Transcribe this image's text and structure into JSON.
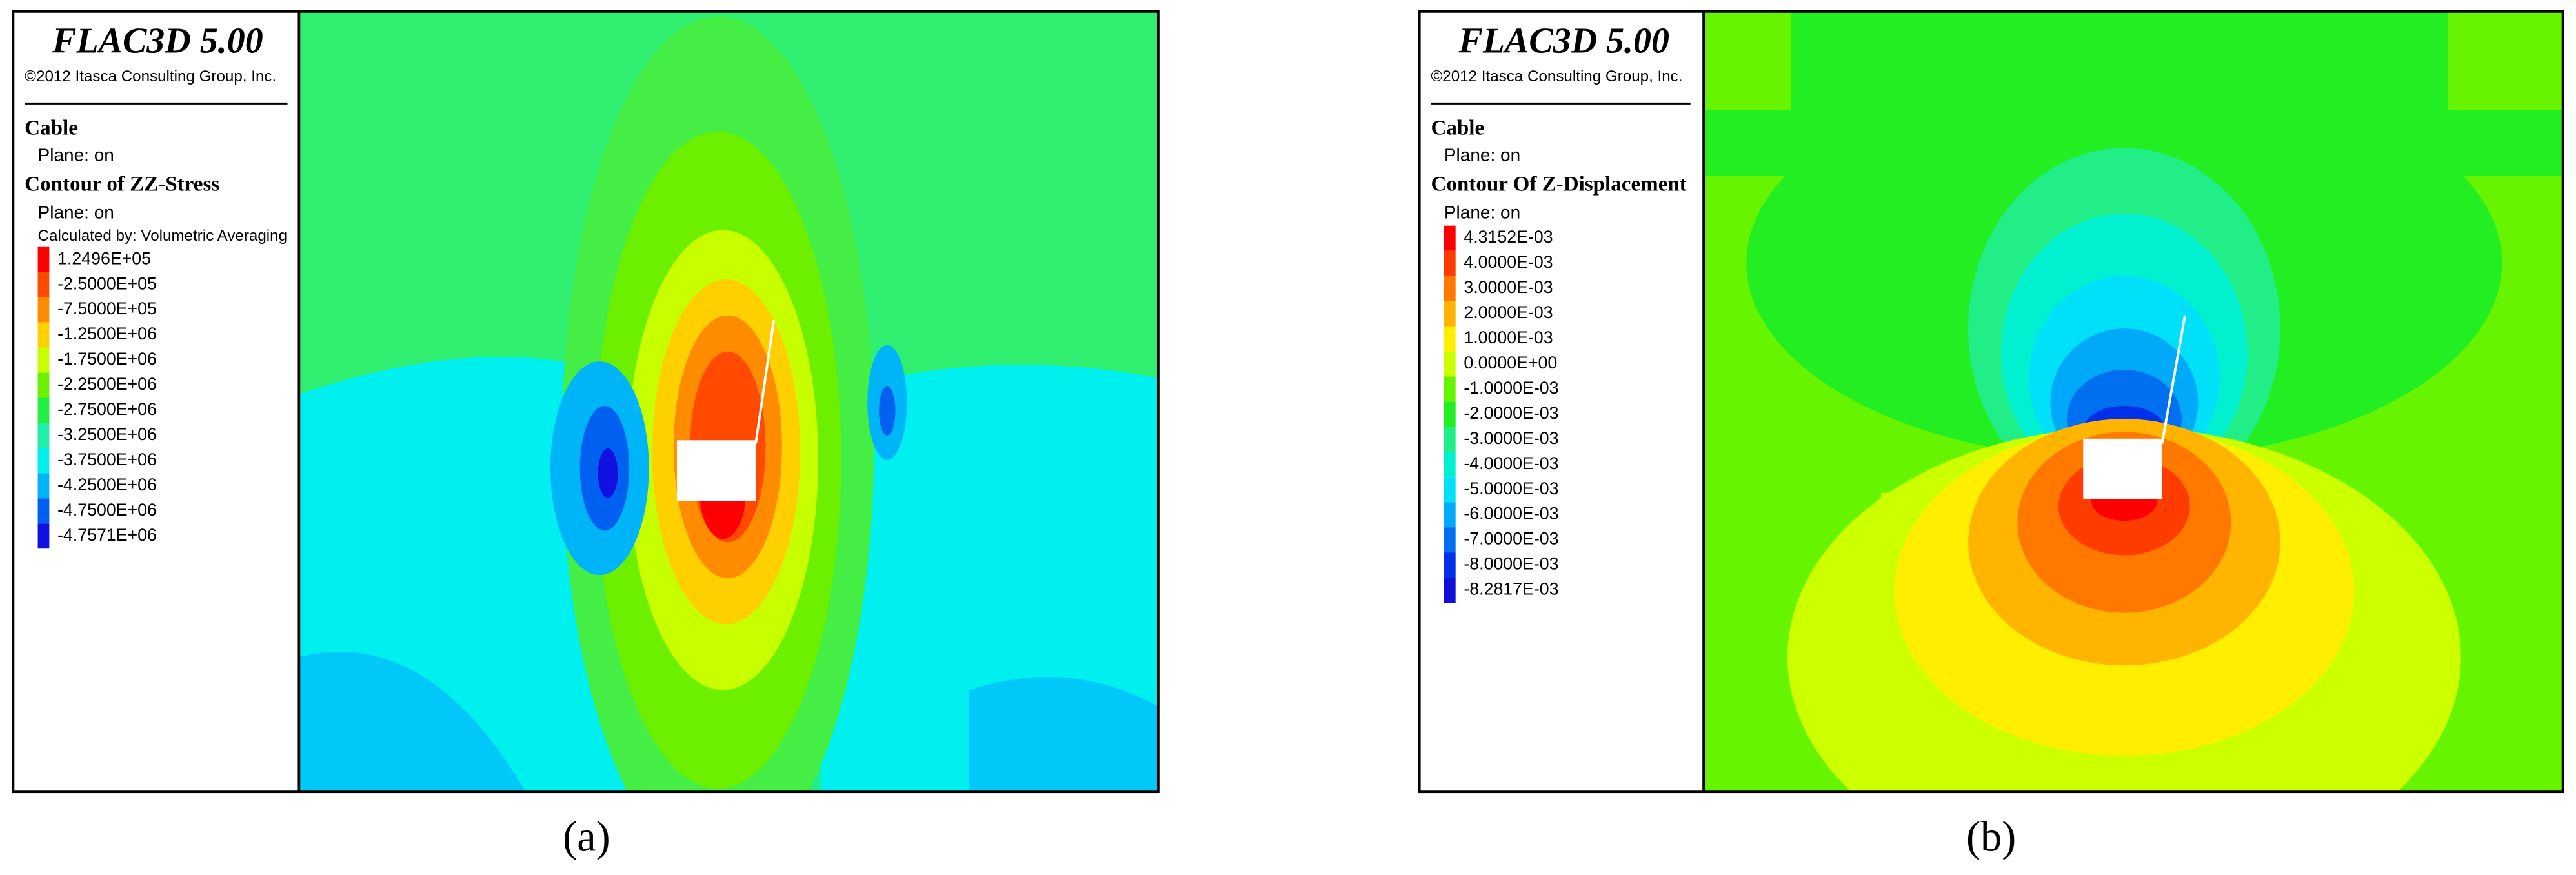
{
  "panels": [
    {
      "title": "FLAC3D 5.00",
      "copyright": "©2012 Itasca Consulting Group, Inc.",
      "object": "Cable",
      "object_plane": "Plane: on",
      "contour": "Contour of ZZ-Stress",
      "contour_plane": "Plane: on",
      "calculated_by": "Calculated by: Volumetric Averaging",
      "legend": [
        {
          "label": "1.2496E+05",
          "color": "#ff0000"
        },
        {
          "label": "-2.5000E+05",
          "color": "#ff4a00"
        },
        {
          "label": "-7.5000E+05",
          "color": "#ff8c00"
        },
        {
          "label": "-1.2500E+06",
          "color": "#ffd000"
        },
        {
          "label": "-1.7500E+06",
          "color": "#c8ff00"
        },
        {
          "label": "-2.2500E+06",
          "color": "#6cf000"
        },
        {
          "label": "-2.7500E+06",
          "color": "#22ee44"
        },
        {
          "label": "-3.2500E+06",
          "color": "#22eeaa"
        },
        {
          "label": "-3.7500E+06",
          "color": "#00f0f0"
        },
        {
          "label": "-4.2500E+06",
          "color": "#00b4f8"
        },
        {
          "label": "-4.7500E+06",
          "color": "#0060f0"
        },
        {
          "label": "-4.7571E+06",
          "color": "#1010e0"
        }
      ],
      "caption": "(a)"
    },
    {
      "title": "FLAC3D 5.00",
      "copyright": "©2012 Itasca Consulting Group, Inc.",
      "object": "Cable",
      "object_plane": "Plane: on",
      "contour": "Contour Of Z-Displacement",
      "contour_plane": "Plane: on",
      "legend": [
        {
          "label": "4.3152E-03",
          "color": "#ff0000"
        },
        {
          "label": "4.0000E-03",
          "color": "#ff3c00"
        },
        {
          "label": "3.0000E-03",
          "color": "#ff7800"
        },
        {
          "label": "2.0000E-03",
          "color": "#ffb400"
        },
        {
          "label": "1.0000E-03",
          "color": "#ffee00"
        },
        {
          "label": "0.0000E+00",
          "color": "#ccff00"
        },
        {
          "label": "-1.0000E-03",
          "color": "#66f400"
        },
        {
          "label": "-2.0000E-03",
          "color": "#22ee22"
        },
        {
          "label": "-3.0000E-03",
          "color": "#22ee88"
        },
        {
          "label": "-4.0000E-03",
          "color": "#00f0d0"
        },
        {
          "label": "-5.0000E-03",
          "color": "#00e0f8"
        },
        {
          "label": "-6.0000E-03",
          "color": "#00aaf8"
        },
        {
          "label": "-7.0000E-03",
          "color": "#0070f0"
        },
        {
          "label": "-8.0000E-03",
          "color": "#0030e8"
        },
        {
          "label": "-8.2817E-03",
          "color": "#1010d8"
        }
      ],
      "caption": "(b)"
    }
  ]
}
